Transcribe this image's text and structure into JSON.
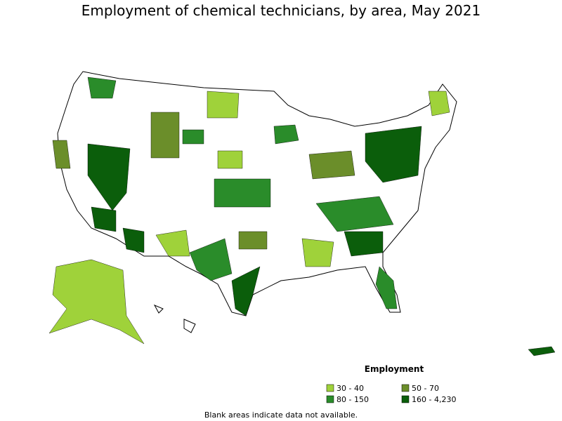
{
  "title": "Employment of chemical technicians, by area, May 2021",
  "legend": {
    "title": "Employment",
    "items": [
      {
        "label": "30 - 40",
        "color": "#9fd23a"
      },
      {
        "label": "50 - 70",
        "color": "#6b8e2a"
      },
      {
        "label": "80 - 150",
        "color": "#2a8c2a"
      },
      {
        "label": "160 - 4,230",
        "color": "#0b5e0b"
      }
    ]
  },
  "note": "Blank areas indicate data not available."
}
